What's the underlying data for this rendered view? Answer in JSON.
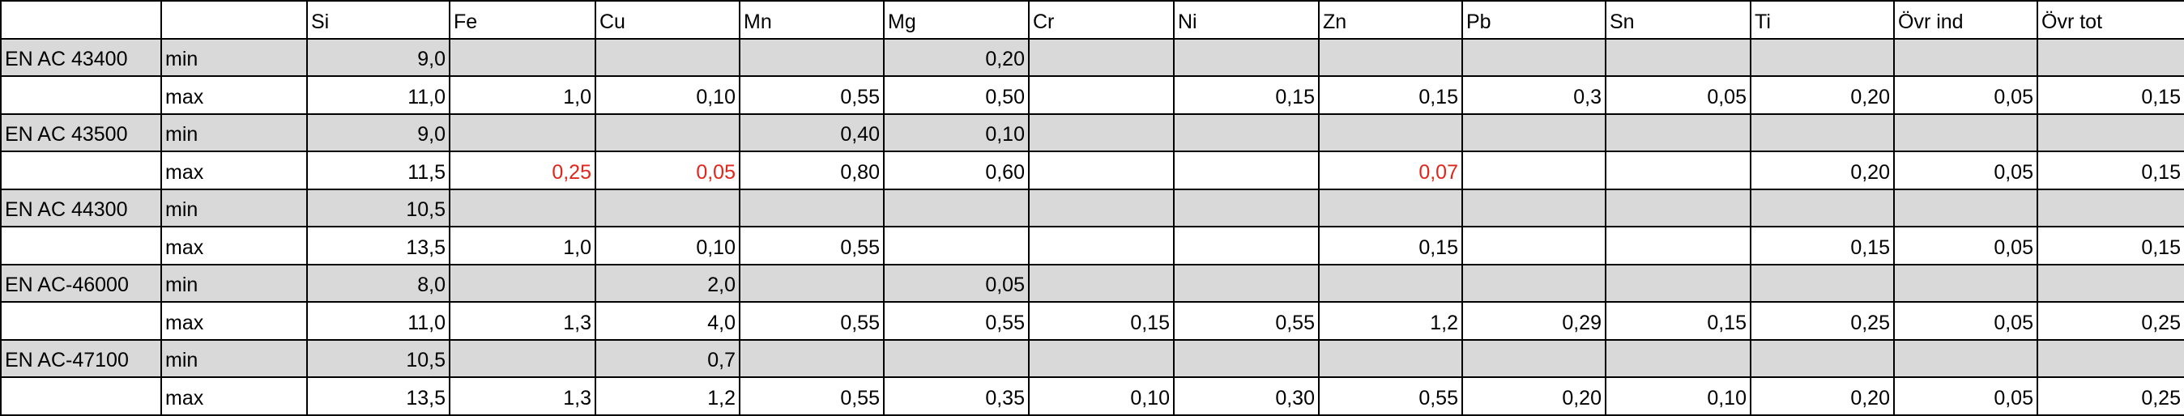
{
  "table": {
    "header": [
      null,
      null,
      "Si",
      "Fe",
      "Cu",
      "Mn",
      "Mg",
      "Cr",
      "Ni",
      "Zn",
      "Pb",
      "Sn",
      "Ti",
      "Övr ind",
      "Övr tot"
    ],
    "rows": [
      [
        "EN AC 43400",
        "min",
        "9,0",
        null,
        null,
        null,
        "0,20",
        null,
        null,
        null,
        null,
        null,
        null,
        null,
        null
      ],
      [
        null,
        "max",
        "11,0",
        "1,0",
        "0,10",
        "0,55",
        "0,50",
        null,
        "0,15",
        "0,15",
        "0,3",
        "0,05",
        "0,20",
        "0,05",
        "0,15"
      ],
      [
        "EN AC 43500",
        "min",
        "9,0",
        null,
        null,
        "0,40",
        "0,10",
        null,
        null,
        null,
        null,
        null,
        null,
        null,
        null
      ],
      [
        null,
        "max",
        "11,5",
        "0,25",
        "0,05",
        "0,80",
        "0,60",
        null,
        null,
        "0,07",
        null,
        null,
        "0,20",
        "0,05",
        "0,15"
      ],
      [
        "EN AC 44300",
        "min",
        "10,5",
        null,
        null,
        null,
        null,
        null,
        null,
        null,
        null,
        null,
        null,
        null,
        null
      ],
      [
        null,
        "max",
        "13,5",
        "1,0",
        "0,10",
        "0,55",
        null,
        null,
        null,
        "0,15",
        null,
        null,
        "0,15",
        "0,05",
        "0,15"
      ],
      [
        "EN AC-46000",
        "min",
        "8,0",
        null,
        "2,0",
        null,
        "0,05",
        null,
        null,
        null,
        null,
        null,
        null,
        null,
        null
      ],
      [
        null,
        "max",
        "11,0",
        "1,3",
        "4,0",
        "0,55",
        "0,55",
        "0,15",
        "0,55",
        "1,2",
        "0,29",
        "0,15",
        "0,25",
        "0,05",
        "0,25"
      ],
      [
        "EN AC-47100",
        "min",
        "10,5",
        null,
        "0,7",
        null,
        null,
        null,
        null,
        null,
        null,
        null,
        null,
        null,
        null
      ],
      [
        null,
        "max",
        "13,5",
        "1,3",
        "1,2",
        "0,55",
        "0,35",
        "0,10",
        "0,30",
        "0,55",
        "0,20",
        "0,10",
        "0,20",
        "0,05",
        "0,25"
      ]
    ],
    "shaded_row_color": "#d9d9d9",
    "highlight_color": "#e0261b",
    "highlighted_cells": [
      [
        3,
        3
      ],
      [
        3,
        4
      ],
      [
        3,
        9
      ]
    ]
  }
}
